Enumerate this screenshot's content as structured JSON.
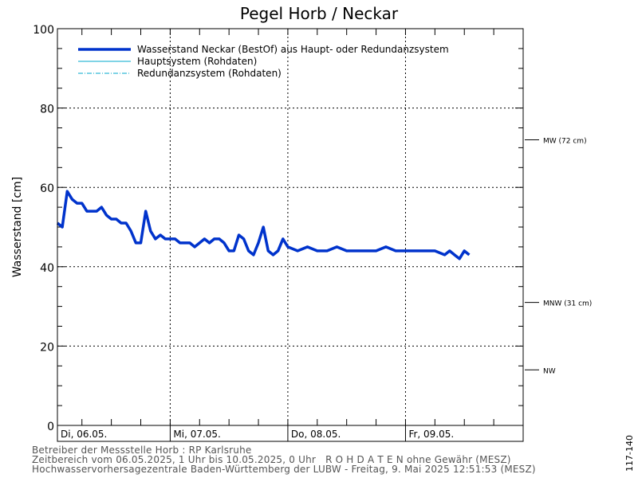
{
  "chart_data": {
    "type": "line",
    "title": "Pegel Horb / Neckar",
    "ylabel": "Wasserstand [cm]",
    "xlabel": "",
    "ylim": [
      0,
      100
    ],
    "yticks": [
      0,
      20,
      40,
      60,
      80,
      100
    ],
    "xlim": [
      "2025-05-06 01:00",
      "2025-05-10 00:00"
    ],
    "x_tick_labels": [
      {
        "label": "Di, 06.05.",
        "x": "2025-05-06 00:00"
      },
      {
        "label": "Mi, 07.05.",
        "x": "2025-05-07 00:00"
      },
      {
        "label": "Do, 08.05.",
        "x": "2025-05-08 00:00"
      },
      {
        "label": "Fr, 09.05.",
        "x": "2025-05-09 00:00"
      }
    ],
    "grid": true,
    "legend_position": "top-left",
    "reference_levels": [
      {
        "label": "MW (72 cm)",
        "value": 72
      },
      {
        "label": "MNW (31 cm)",
        "value": 31
      },
      {
        "label": "NW",
        "value": 14
      }
    ],
    "series": [
      {
        "name": "Wasserstand Neckar  (BestOf)  aus Haupt- oder Redundanzsystem",
        "color": "#0033cc",
        "style": "thick",
        "x": [
          "2025-05-06 01:00",
          "2025-05-06 02:00",
          "2025-05-06 03:00",
          "2025-05-06 04:00",
          "2025-05-06 05:00",
          "2025-05-06 06:00",
          "2025-05-06 07:00",
          "2025-05-06 08:00",
          "2025-05-06 09:00",
          "2025-05-06 10:00",
          "2025-05-06 11:00",
          "2025-05-06 12:00",
          "2025-05-06 13:00",
          "2025-05-06 14:00",
          "2025-05-06 15:00",
          "2025-05-06 16:00",
          "2025-05-06 17:00",
          "2025-05-06 18:00",
          "2025-05-06 19:00",
          "2025-05-06 20:00",
          "2025-05-06 21:00",
          "2025-05-06 22:00",
          "2025-05-06 23:00",
          "2025-05-07 00:00",
          "2025-05-07 01:00",
          "2025-05-07 02:00",
          "2025-05-07 03:00",
          "2025-05-07 04:00",
          "2025-05-07 05:00",
          "2025-05-07 06:00",
          "2025-05-07 07:00",
          "2025-05-07 08:00",
          "2025-05-07 09:00",
          "2025-05-07 10:00",
          "2025-05-07 11:00",
          "2025-05-07 12:00",
          "2025-05-07 13:00",
          "2025-05-07 14:00",
          "2025-05-07 15:00",
          "2025-05-07 16:00",
          "2025-05-07 17:00",
          "2025-05-07 18:00",
          "2025-05-07 19:00",
          "2025-05-07 20:00",
          "2025-05-07 21:00",
          "2025-05-07 22:00",
          "2025-05-07 23:00",
          "2025-05-08 00:00",
          "2025-05-08 02:00",
          "2025-05-08 04:00",
          "2025-05-08 06:00",
          "2025-05-08 08:00",
          "2025-05-08 10:00",
          "2025-05-08 12:00",
          "2025-05-08 14:00",
          "2025-05-08 16:00",
          "2025-05-08 18:00",
          "2025-05-08 20:00",
          "2025-05-08 22:00",
          "2025-05-09 00:00",
          "2025-05-09 02:00",
          "2025-05-09 04:00",
          "2025-05-09 06:00",
          "2025-05-09 08:00",
          "2025-05-09 09:00",
          "2025-05-09 10:00",
          "2025-05-09 11:00",
          "2025-05-09 12:00",
          "2025-05-09 13:00"
        ],
        "y": [
          51,
          50,
          59,
          57,
          56,
          56,
          54,
          54,
          54,
          55,
          53,
          52,
          52,
          51,
          51,
          49,
          46,
          46,
          54,
          49,
          47,
          48,
          47,
          47,
          47,
          46,
          46,
          46,
          45,
          46,
          47,
          46,
          47,
          47,
          46,
          44,
          44,
          48,
          47,
          44,
          43,
          46,
          50,
          44,
          43,
          44,
          47,
          45,
          44,
          45,
          44,
          44,
          45,
          44,
          44,
          44,
          44,
          45,
          44,
          44,
          44,
          44,
          44,
          43,
          44,
          43,
          42,
          44,
          43
        ]
      },
      {
        "name": "Hauptsystem (Rohdaten)",
        "color": "#00aacc",
        "style": "thin",
        "x": [
          "2025-05-06 01:00",
          "2025-05-06 02:00",
          "2025-05-06 03:00",
          "2025-05-06 04:00",
          "2025-05-06 05:00",
          "2025-05-06 06:00",
          "2025-05-06 07:00",
          "2025-05-06 08:00",
          "2025-05-06 09:00",
          "2025-05-06 10:00",
          "2025-05-06 11:00",
          "2025-05-06 12:00",
          "2025-05-06 13:00",
          "2025-05-06 14:00",
          "2025-05-06 15:00",
          "2025-05-06 16:00",
          "2025-05-06 17:00",
          "2025-05-06 18:00",
          "2025-05-06 19:00",
          "2025-05-06 20:00",
          "2025-05-06 21:00",
          "2025-05-06 22:00",
          "2025-05-06 23:00",
          "2025-05-07 00:00",
          "2025-05-07 01:00",
          "2025-05-07 02:00",
          "2025-05-07 03:00",
          "2025-05-07 04:00",
          "2025-05-07 05:00",
          "2025-05-07 06:00",
          "2025-05-07 07:00",
          "2025-05-07 08:00",
          "2025-05-07 09:00",
          "2025-05-07 10:00",
          "2025-05-07 11:00",
          "2025-05-07 12:00",
          "2025-05-07 13:00",
          "2025-05-07 14:00",
          "2025-05-07 15:00",
          "2025-05-07 16:00",
          "2025-05-07 17:00",
          "2025-05-07 18:00",
          "2025-05-07 19:00",
          "2025-05-07 20:00",
          "2025-05-07 21:00",
          "2025-05-07 22:00",
          "2025-05-07 23:00",
          "2025-05-08 00:00",
          "2025-05-08 02:00",
          "2025-05-08 04:00",
          "2025-05-08 06:00",
          "2025-05-08 08:00",
          "2025-05-08 10:00",
          "2025-05-08 12:00",
          "2025-05-08 14:00",
          "2025-05-08 16:00",
          "2025-05-08 18:00",
          "2025-05-08 20:00",
          "2025-05-08 22:00",
          "2025-05-09 00:00",
          "2025-05-09 02:00",
          "2025-05-09 04:00",
          "2025-05-09 06:00",
          "2025-05-09 08:00",
          "2025-05-09 09:00",
          "2025-05-09 10:00",
          "2025-05-09 11:00",
          "2025-05-09 12:00",
          "2025-05-09 13:00"
        ],
        "y": [
          51,
          50,
          59,
          57,
          56,
          56,
          54,
          54,
          54,
          55,
          53,
          52,
          52,
          51,
          51,
          49,
          46,
          46,
          54,
          49,
          47,
          48,
          47,
          47,
          47,
          46,
          46,
          46,
          45,
          46,
          47,
          46,
          47,
          47,
          46,
          44,
          44,
          48,
          47,
          44,
          43,
          46,
          50,
          44,
          43,
          44,
          47,
          45,
          44,
          45,
          44,
          44,
          45,
          44,
          44,
          44,
          44,
          45,
          44,
          44,
          44,
          44,
          44,
          43,
          44,
          43,
          42,
          44,
          43
        ]
      },
      {
        "name": "Redundanzsystem (Rohdaten)",
        "color": "#00aacc",
        "style": "dashdot",
        "x": [
          "2025-05-06 01:00",
          "2025-05-06 02:00",
          "2025-05-06 03:00",
          "2025-05-06 04:00",
          "2025-05-06 05:00",
          "2025-05-06 06:00",
          "2025-05-06 07:00",
          "2025-05-06 08:00",
          "2025-05-06 09:00",
          "2025-05-06 10:00",
          "2025-05-06 11:00",
          "2025-05-06 12:00",
          "2025-05-06 13:00",
          "2025-05-06 14:00",
          "2025-05-06 15:00",
          "2025-05-06 16:00",
          "2025-05-06 17:00",
          "2025-05-06 18:00",
          "2025-05-06 19:00",
          "2025-05-06 20:00",
          "2025-05-06 21:00",
          "2025-05-06 22:00",
          "2025-05-06 23:00",
          "2025-05-07 00:00",
          "2025-05-07 01:00",
          "2025-05-07 02:00",
          "2025-05-07 03:00",
          "2025-05-07 04:00",
          "2025-05-07 05:00",
          "2025-05-07 06:00",
          "2025-05-07 07:00",
          "2025-05-07 08:00",
          "2025-05-07 09:00",
          "2025-05-07 10:00",
          "2025-05-07 11:00",
          "2025-05-07 12:00",
          "2025-05-07 13:00",
          "2025-05-07 14:00",
          "2025-05-07 15:00",
          "2025-05-07 16:00",
          "2025-05-07 17:00",
          "2025-05-07 18:00",
          "2025-05-07 19:00",
          "2025-05-07 20:00",
          "2025-05-07 21:00",
          "2025-05-07 22:00",
          "2025-05-07 23:00",
          "2025-05-08 00:00",
          "2025-05-08 02:00",
          "2025-05-08 04:00",
          "2025-05-08 06:00",
          "2025-05-08 08:00",
          "2025-05-08 10:00",
          "2025-05-08 12:00",
          "2025-05-08 14:00",
          "2025-05-08 16:00",
          "2025-05-08 18:00",
          "2025-05-08 20:00",
          "2025-05-08 22:00",
          "2025-05-09 00:00",
          "2025-05-09 02:00",
          "2025-05-09 04:00",
          "2025-05-09 06:00",
          "2025-05-09 08:00",
          "2025-05-09 09:00",
          "2025-05-09 10:00",
          "2025-05-09 11:00",
          "2025-05-09 12:00",
          "2025-05-09 13:00"
        ],
        "y": [
          51,
          50,
          59,
          57,
          56,
          56,
          54,
          54,
          54,
          55,
          53,
          52,
          52,
          51,
          51,
          49,
          46,
          46,
          54,
          49,
          47,
          48,
          47,
          47,
          47,
          46,
          46,
          46,
          45,
          46,
          47,
          46,
          47,
          47,
          46,
          44,
          44,
          48,
          47,
          44,
          43,
          46,
          50,
          44,
          43,
          44,
          47,
          45,
          44,
          45,
          44,
          44,
          45,
          44,
          44,
          44,
          44,
          45,
          44,
          44,
          44,
          44,
          44,
          43,
          44,
          43,
          42,
          44,
          43
        ]
      }
    ]
  },
  "footer": {
    "line1": "Betreiber der Messstelle Horb : RP Karlsruhe",
    "line2": "Zeitbereich vom 06.05.2025, 1 Uhr bis 10.05.2025, 0 Uhr   R O H D A T E N ohne Gewähr (MESZ)",
    "line3": "Hochwasservorhersagezentrale Baden-Württemberg der LUBW - Freitag, 9. Mai 2025 12:51:53 (MESZ)"
  },
  "side_code": "117-140"
}
